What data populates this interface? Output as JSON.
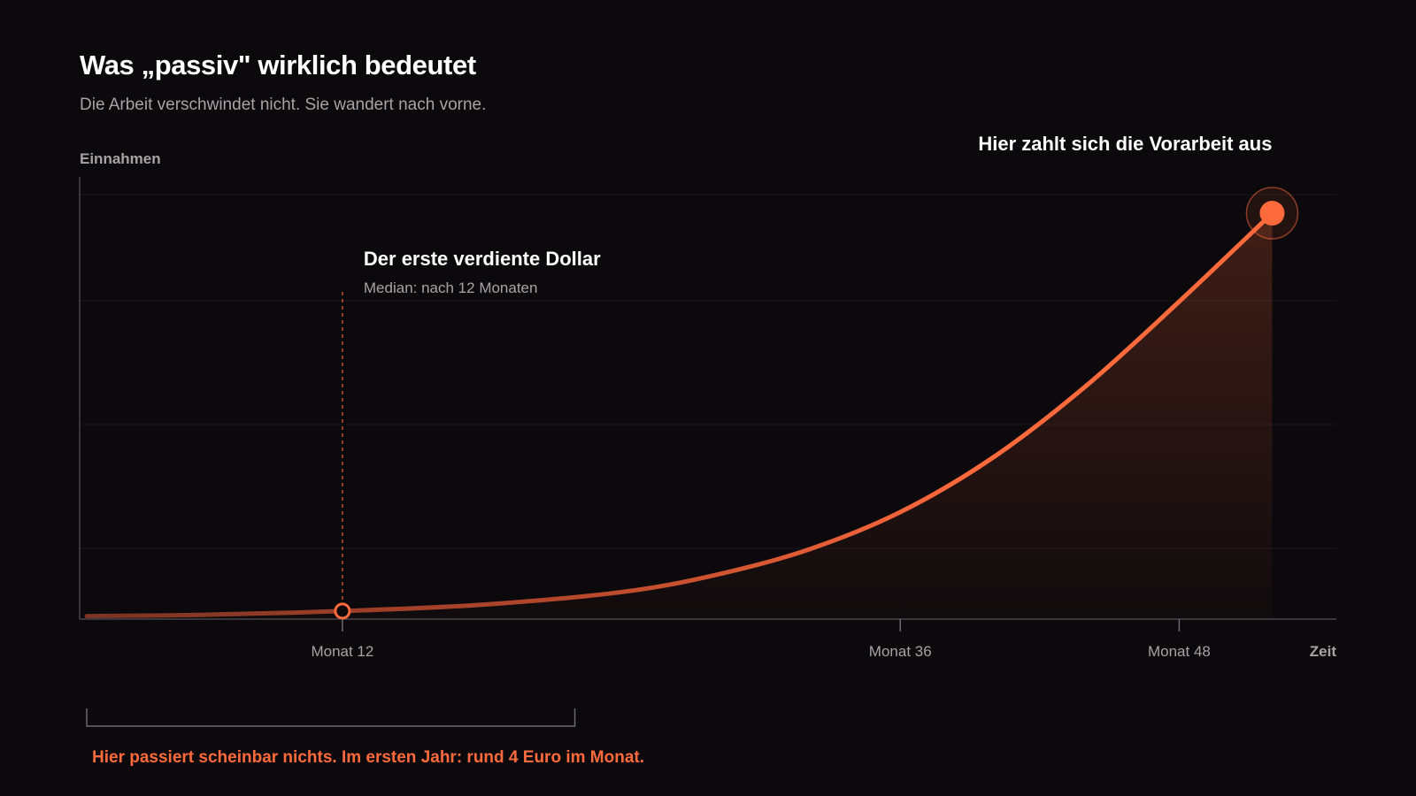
{
  "header": {
    "title": "Was „passiv\" wirklich bedeutet",
    "subtitle": "Die Arbeit verschwindet nicht. Sie wandert nach vorne."
  },
  "colors": {
    "background": "#0b090c",
    "accent": "#ff6a3d",
    "text": "#ffffff",
    "muted": "#a7a2a6"
  },
  "chart_data": {
    "type": "area",
    "ylabel": "Einnahmen",
    "xlabel": "Zeit",
    "xlim": [
      1,
      54
    ],
    "ylim": [
      0,
      100
    ],
    "x_ticks": [
      {
        "value": 12,
        "label": "Monat 12"
      },
      {
        "value": 36,
        "label": "Monat 36"
      },
      {
        "value": 48,
        "label": "Monat 48"
      }
    ],
    "grid": true,
    "series": [
      {
        "values": [
          {
            "x": 1,
            "y": 0.3
          },
          {
            "x": 6,
            "y": 0.6
          },
          {
            "x": 12,
            "y": 1.5
          },
          {
            "x": 18,
            "y": 3
          },
          {
            "x": 24,
            "y": 6
          },
          {
            "x": 28,
            "y": 10
          },
          {
            "x": 32,
            "y": 16
          },
          {
            "x": 36,
            "y": 25
          },
          {
            "x": 40,
            "y": 38
          },
          {
            "x": 44,
            "y": 55
          },
          {
            "x": 48,
            "y": 75
          },
          {
            "x": 52,
            "y": 96
          }
        ]
      }
    ],
    "annotations": {
      "first_dollar": {
        "x": 12,
        "y": 1.5,
        "title": "Der erste verdiente Dollar",
        "subtitle": "Median: nach 12 Monaten"
      },
      "payoff": {
        "x": 52,
        "y": 96,
        "label": "Hier zahlt sich die Vorarbeit aus"
      },
      "bracket": {
        "x_start": 1,
        "x_end": 22,
        "label": "Hier passiert scheinbar nichts. Im ersten Jahr: rund 4 Euro im Monat."
      }
    }
  }
}
